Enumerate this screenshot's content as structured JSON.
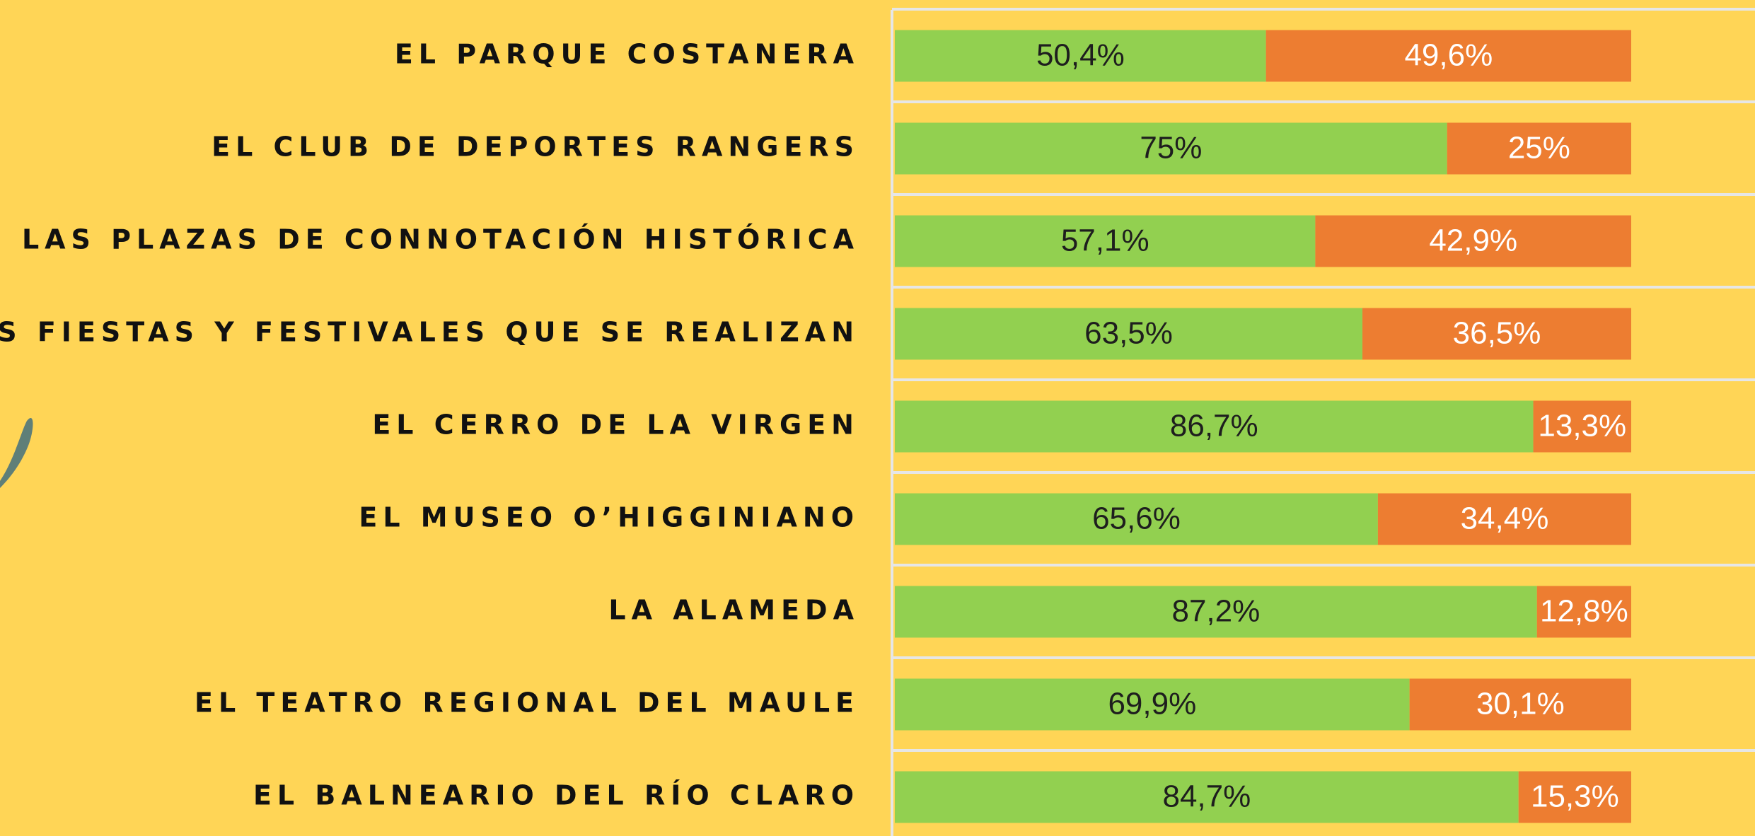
{
  "chart_data": {
    "type": "stacked-bar-horizontal",
    "categories": [
      "EL PARQUE COSTANERA",
      "EL CLUB DE DEPORTES RANGERS",
      "LAS PLAZAS DE CONNOTACIÓN HISTÓRICA",
      "LAS FIESTAS Y FESTIVALES QUE SE REALIZAN",
      "EL CERRO DE LA  VIRGEN",
      "EL MUSEO O’HIGGINIANO",
      "LA ALAMEDA",
      "EL TEATRO REGIONAL DEL MAULE",
      "EL BALNEARIO DEL RÍO CLARO"
    ],
    "series": [
      {
        "color": "#92d050",
        "values": [
          50.4,
          75,
          57.1,
          63.5,
          86.7,
          65.6,
          87.2,
          69.9,
          84.7
        ],
        "value_labels": [
          "50,4%",
          "75%",
          "57,1%",
          "63,5%",
          "86,7%",
          "65,6%",
          "87,2%",
          "69,9%",
          "84,7%"
        ]
      },
      {
        "color": "#ed7d31",
        "values": [
          49.6,
          25,
          42.9,
          36.5,
          13.3,
          34.4,
          12.8,
          30.1,
          15.3
        ],
        "value_labels": [
          "49,6%",
          "25%",
          "42,9%",
          "36,5%",
          "13,3%",
          "34,4%",
          "12,8%",
          "30,1%",
          "15,3%"
        ]
      }
    ],
    "xlim": [
      0,
      100
    ]
  }
}
